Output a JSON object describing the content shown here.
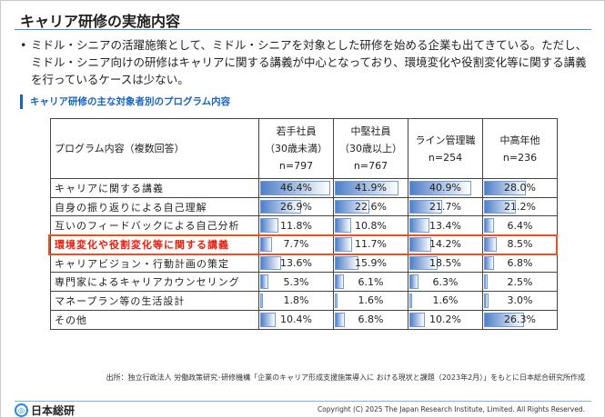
{
  "title": "キャリア研修の実施内容",
  "bullet": "ミドル・シニアの活躍施策として、ミドル・シニアを対象とした研修を始める企業も出てきている。ただし、ミドル・シニア向けの研修はキャリアに関する講義が中心となっており、環境変化や役割変化等に関する講義を行っているケースは少ない。",
  "section_title": "キャリア研修の主な対象者別のプログラム内容",
  "table": {
    "header_label": "プログラム内容（複数回答）",
    "columns": [
      {
        "l1": "若手社員",
        "l2": "（30歳未満）",
        "n": "n=797"
      },
      {
        "l1": "中堅社員",
        "l2": "（30歳以上）",
        "n": "n=767"
      },
      {
        "l1": "ライン管理職",
        "l2": "",
        "n": "n=254"
      },
      {
        "l1": "中高年他",
        "l2": "",
        "n": "n=236"
      }
    ],
    "rows": [
      {
        "label": "キャリアに関する講義",
        "values": [
          46.4,
          41.9,
          40.9,
          28.0
        ],
        "text": [
          "46.4%",
          "41.9%",
          "40.9%",
          "28.0%"
        ]
      },
      {
        "label": "自身の振り返りによる自己理解",
        "values": [
          26.9,
          22.6,
          21.7,
          21.2
        ],
        "text": [
          "26.9%",
          "22.6%",
          "21.7%",
          "21.2%"
        ]
      },
      {
        "label": "互いのフィードバックによる自己分析",
        "values": [
          11.8,
          10.8,
          13.4,
          6.4
        ],
        "text": [
          "11.8%",
          "10.8%",
          "13.4%",
          "6.4%"
        ]
      },
      {
        "label": "環境変化や役割変化等に関する講義",
        "values": [
          7.7,
          11.7,
          14.2,
          8.5
        ],
        "text": [
          "7.7%",
          "11.7%",
          "14.2%",
          "8.5%"
        ],
        "highlight": true
      },
      {
        "label": "キャリアビジョン・行動計画の策定",
        "values": [
          13.6,
          15.9,
          18.5,
          6.8
        ],
        "text": [
          "13.6%",
          "15.9%",
          "18.5%",
          "6.8%"
        ]
      },
      {
        "label": "専門家によるキャリアカウンセリング",
        "values": [
          5.3,
          6.1,
          6.3,
          2.5
        ],
        "text": [
          "5.3%",
          "6.1%",
          "6.3%",
          "2.5%"
        ]
      },
      {
        "label": "マネープラン等の生活設計",
        "values": [
          1.8,
          1.6,
          1.6,
          3.0
        ],
        "text": [
          "1.8%",
          "1.6%",
          "1.6%",
          "3.0%"
        ]
      },
      {
        "label": "その他",
        "values": [
          10.4,
          6.8,
          10.2,
          26.3
        ],
        "text": [
          "10.4%",
          "6.8%",
          "10.2%",
          "26.3%"
        ]
      }
    ]
  },
  "source": "出所：独立行政法人 労働政策研究･研修機構「企業のキャリア形成支援施策導入に おける現状と課題（2023年2月）」をもとに日本総合研究所作成",
  "logo": {
    "name": "日本総研",
    "sub": "The Japan Research Institute, Limited"
  },
  "copyright": "Copyright (C) 2025 The Japan Research Institute, Limited. All Rights Reserved.",
  "colors": {
    "accent": "#1565c0",
    "highlight": "#f0501e",
    "bar": "#4f7fc8"
  }
}
